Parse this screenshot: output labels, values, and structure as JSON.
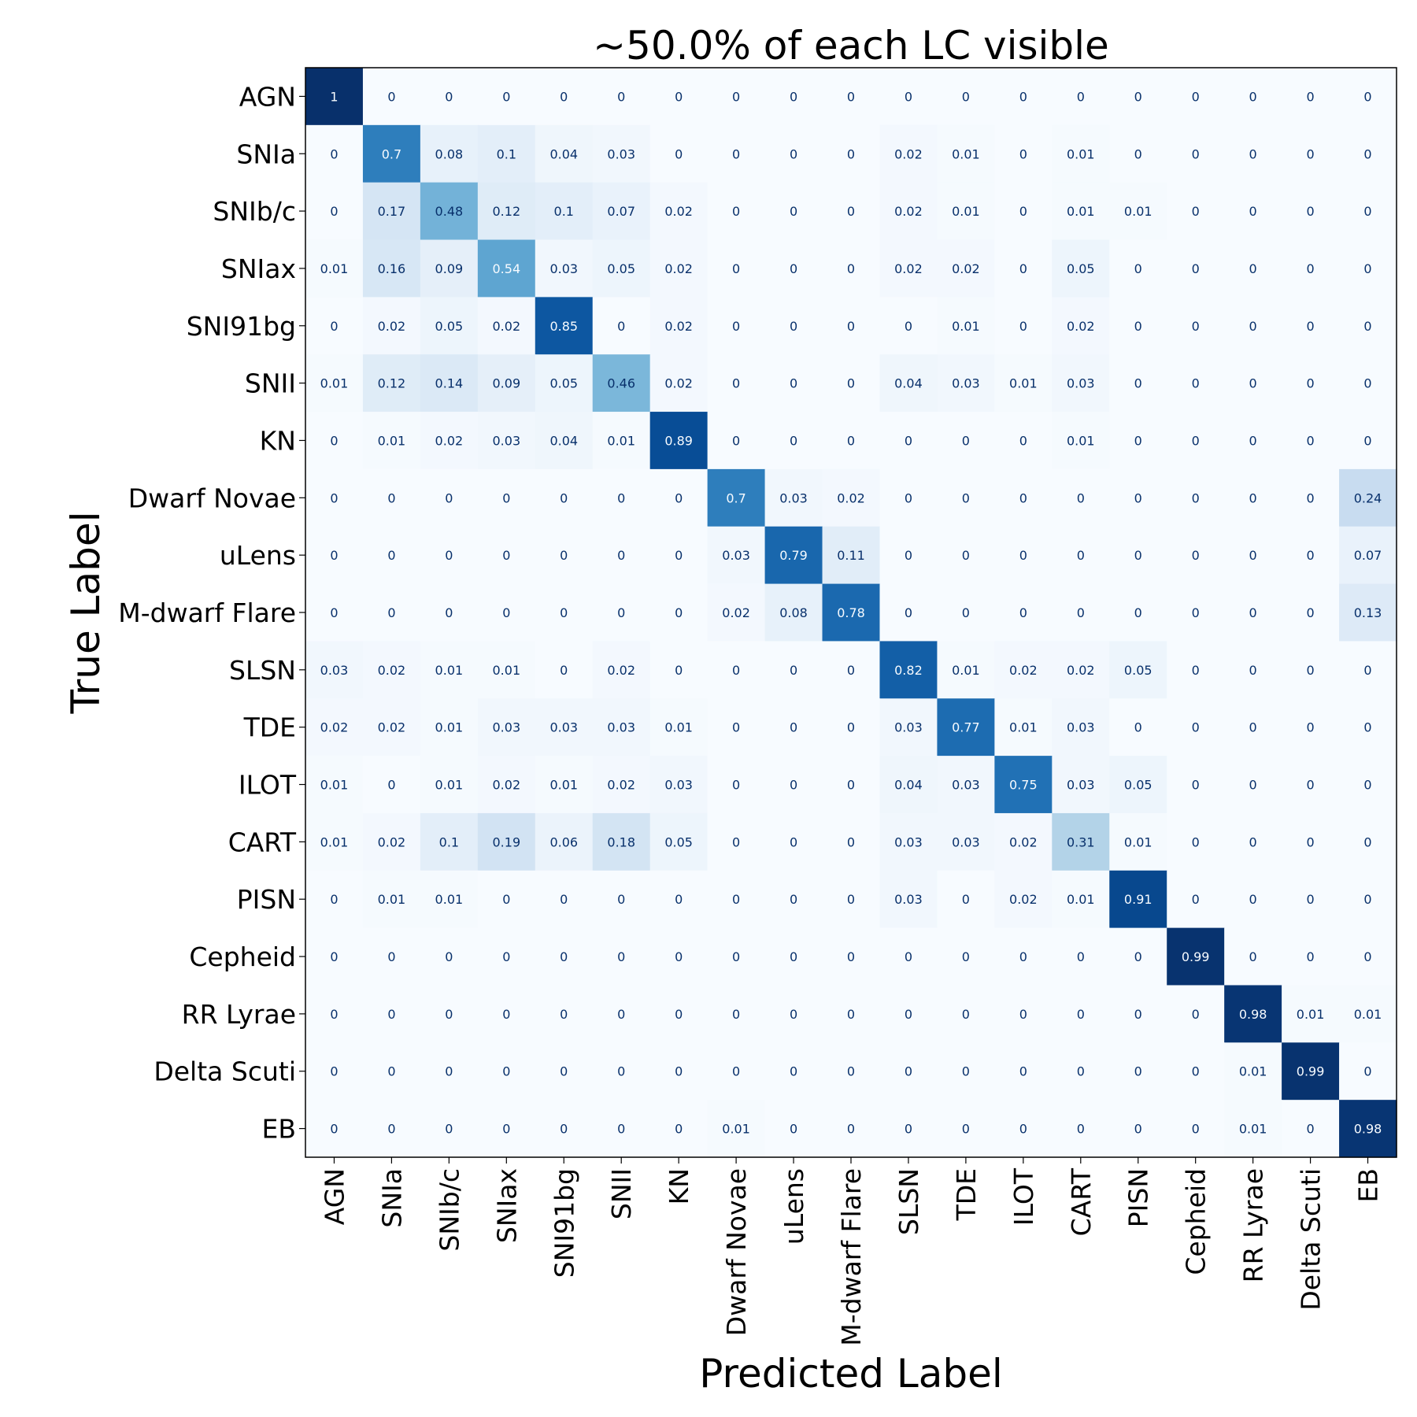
{
  "chart_data": {
    "type": "heatmap",
    "title": "~50.0% of each LC visible",
    "xlabel": "Predicted Label",
    "ylabel": "True Label",
    "labels": [
      "AGN",
      "SNIa",
      "SNIb/c",
      "SNIax",
      "SNI91bg",
      "SNII",
      "KN",
      "Dwarf Novae",
      "uLens",
      "M-dwarf Flare",
      "SLSN",
      "TDE",
      "ILOT",
      "CART",
      "PISN",
      "Cepheid",
      "RR Lyrae",
      "Delta Scuti",
      "EB"
    ],
    "value_range": [
      0,
      1
    ],
    "colormap": {
      "low": "#f7fbff",
      "high": "#08306b"
    },
    "text_colors": {
      "dark": "#08306b",
      "light": "#f7fbff"
    },
    "matrix": [
      [
        "1",
        "0",
        "0",
        "0",
        "0",
        "0",
        "0",
        "0",
        "0",
        "0",
        "0",
        "0",
        "0",
        "0",
        "0",
        "0",
        "0",
        "0",
        "0"
      ],
      [
        "0",
        "0.7",
        "0.08",
        "0.1",
        "0.04",
        "0.03",
        "0",
        "0",
        "0",
        "0",
        "0.02",
        "0.01",
        "0",
        "0.01",
        "0",
        "0",
        "0",
        "0",
        "0"
      ],
      [
        "0",
        "0.17",
        "0.48",
        "0.12",
        "0.1",
        "0.07",
        "0.02",
        "0",
        "0",
        "0",
        "0.02",
        "0.01",
        "0",
        "0.01",
        "0.01",
        "0",
        "0",
        "0",
        "0"
      ],
      [
        "0.01",
        "0.16",
        "0.09",
        "0.54",
        "0.03",
        "0.05",
        "0.02",
        "0",
        "0",
        "0",
        "0.02",
        "0.02",
        "0",
        "0.05",
        "0",
        "0",
        "0",
        "0",
        "0"
      ],
      [
        "0",
        "0.02",
        "0.05",
        "0.02",
        "0.85",
        "0",
        "0.02",
        "0",
        "0",
        "0",
        "0",
        "0.01",
        "0",
        "0.02",
        "0",
        "0",
        "0",
        "0",
        "0"
      ],
      [
        "0.01",
        "0.12",
        "0.14",
        "0.09",
        "0.05",
        "0.46",
        "0.02",
        "0",
        "0",
        "0",
        "0.04",
        "0.03",
        "0.01",
        "0.03",
        "0",
        "0",
        "0",
        "0",
        "0"
      ],
      [
        "0",
        "0.01",
        "0.02",
        "0.03",
        "0.04",
        "0.01",
        "0.89",
        "0",
        "0",
        "0",
        "0",
        "0",
        "0",
        "0.01",
        "0",
        "0",
        "0",
        "0",
        "0"
      ],
      [
        "0",
        "0",
        "0",
        "0",
        "0",
        "0",
        "0",
        "0.7",
        "0.03",
        "0.02",
        "0",
        "0",
        "0",
        "0",
        "0",
        "0",
        "0",
        "0",
        "0.24"
      ],
      [
        "0",
        "0",
        "0",
        "0",
        "0",
        "0",
        "0",
        "0.03",
        "0.79",
        "0.11",
        "0",
        "0",
        "0",
        "0",
        "0",
        "0",
        "0",
        "0",
        "0.07"
      ],
      [
        "0",
        "0",
        "0",
        "0",
        "0",
        "0",
        "0",
        "0.02",
        "0.08",
        "0.78",
        "0",
        "0",
        "0",
        "0",
        "0",
        "0",
        "0",
        "0",
        "0.13"
      ],
      [
        "0.03",
        "0.02",
        "0.01",
        "0.01",
        "0",
        "0.02",
        "0",
        "0",
        "0",
        "0",
        "0.82",
        "0.01",
        "0.02",
        "0.02",
        "0.05",
        "0",
        "0",
        "0",
        "0"
      ],
      [
        "0.02",
        "0.02",
        "0.01",
        "0.03",
        "0.03",
        "0.03",
        "0.01",
        "0",
        "0",
        "0",
        "0.03",
        "0.77",
        "0.01",
        "0.03",
        "0",
        "0",
        "0",
        "0",
        "0"
      ],
      [
        "0.01",
        "0",
        "0.01",
        "0.02",
        "0.01",
        "0.02",
        "0.03",
        "0",
        "0",
        "0",
        "0.04",
        "0.03",
        "0.75",
        "0.03",
        "0.05",
        "0",
        "0",
        "0",
        "0"
      ],
      [
        "0.01",
        "0.02",
        "0.1",
        "0.19",
        "0.06",
        "0.18",
        "0.05",
        "0",
        "0",
        "0",
        "0.03",
        "0.03",
        "0.02",
        "0.31",
        "0.01",
        "0",
        "0",
        "0",
        "0"
      ],
      [
        "0",
        "0.01",
        "0.01",
        "0",
        "0",
        "0",
        "0",
        "0",
        "0",
        "0",
        "0.03",
        "0",
        "0.02",
        "0.01",
        "0.91",
        "0",
        "0",
        "0",
        "0"
      ],
      [
        "0",
        "0",
        "0",
        "0",
        "0",
        "0",
        "0",
        "0",
        "0",
        "0",
        "0",
        "0",
        "0",
        "0",
        "0",
        "0.99",
        "0",
        "0",
        "0"
      ],
      [
        "0",
        "0",
        "0",
        "0",
        "0",
        "0",
        "0",
        "0",
        "0",
        "0",
        "0",
        "0",
        "0",
        "0",
        "0",
        "0",
        "0.98",
        "0.01",
        "0.01"
      ],
      [
        "0",
        "0",
        "0",
        "0",
        "0",
        "0",
        "0",
        "0",
        "0",
        "0",
        "0",
        "0",
        "0",
        "0",
        "0",
        "0",
        "0.01",
        "0.99",
        "0"
      ],
      [
        "0",
        "0",
        "0",
        "0",
        "0",
        "0",
        "0",
        "0.01",
        "0",
        "0",
        "0",
        "0",
        "0",
        "0",
        "0",
        "0",
        "0.01",
        "0",
        "0.98"
      ]
    ]
  }
}
